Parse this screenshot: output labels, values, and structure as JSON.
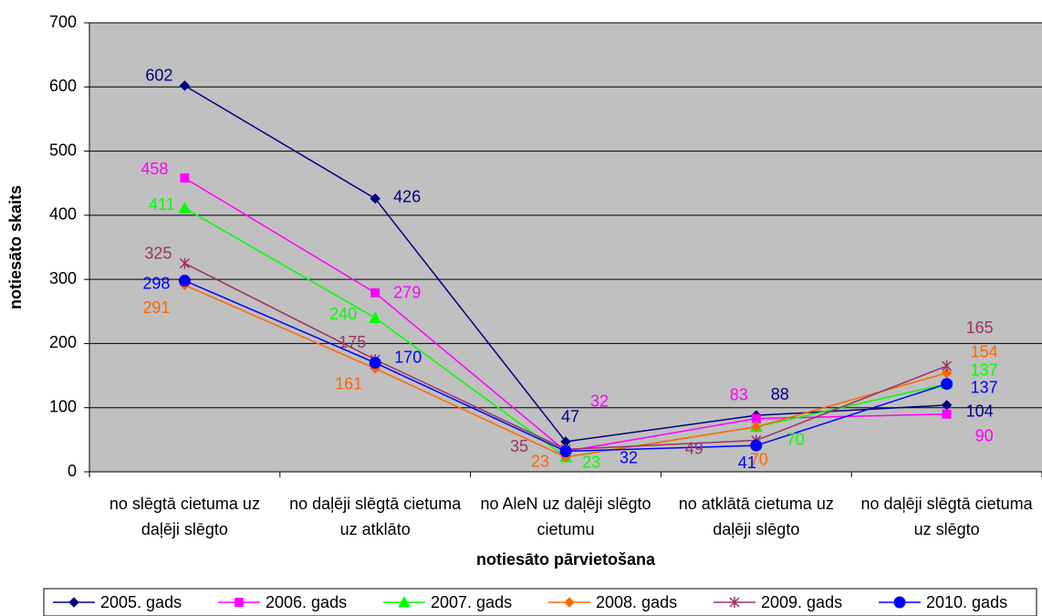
{
  "chart_data": {
    "type": "line",
    "xlabel": "notiesāto pārvietošana",
    "ylabel": "notiesāto skaits",
    "categories": [
      "no slēgtā cietuma uz daļēji slēgto",
      "no daļēji slēgtā cietuma uz atklāto",
      "no AleN uz daļēji slēgto cietumu",
      "no atklātā cietuma uz daļēji slēgto",
      "no daļēji slēgtā cietuma uz slēgto"
    ],
    "series": [
      {
        "name": "2005. gads",
        "color": "#000080",
        "marker": "diamond",
        "values": [
          602,
          426,
          47,
          88,
          104
        ]
      },
      {
        "name": "2006. gads",
        "color": "#ff00ff",
        "marker": "square",
        "values": [
          458,
          279,
          32,
          83,
          90
        ]
      },
      {
        "name": "2007. gads",
        "color": "#00ff00",
        "marker": "triangle",
        "values": [
          411,
          240,
          23,
          70,
          137
        ]
      },
      {
        "name": "2008. gads",
        "color": "#ff6600",
        "marker": "diamond",
        "values": [
          291,
          161,
          23,
          70,
          154
        ]
      },
      {
        "name": "2009. gads",
        "color": "#993366",
        "marker": "asterisk",
        "values": [
          325,
          175,
          35,
          49,
          165
        ]
      },
      {
        "name": "2010. gads",
        "color": "#0000ff",
        "marker": "circle",
        "values": [
          298,
          170,
          32,
          41,
          137
        ]
      }
    ],
    "ylim": [
      0,
      700
    ],
    "yticks": [
      0,
      100,
      200,
      300,
      400,
      500,
      600,
      700
    ],
    "grid": true,
    "legend": "bottom",
    "background": "#c0c0c0"
  }
}
